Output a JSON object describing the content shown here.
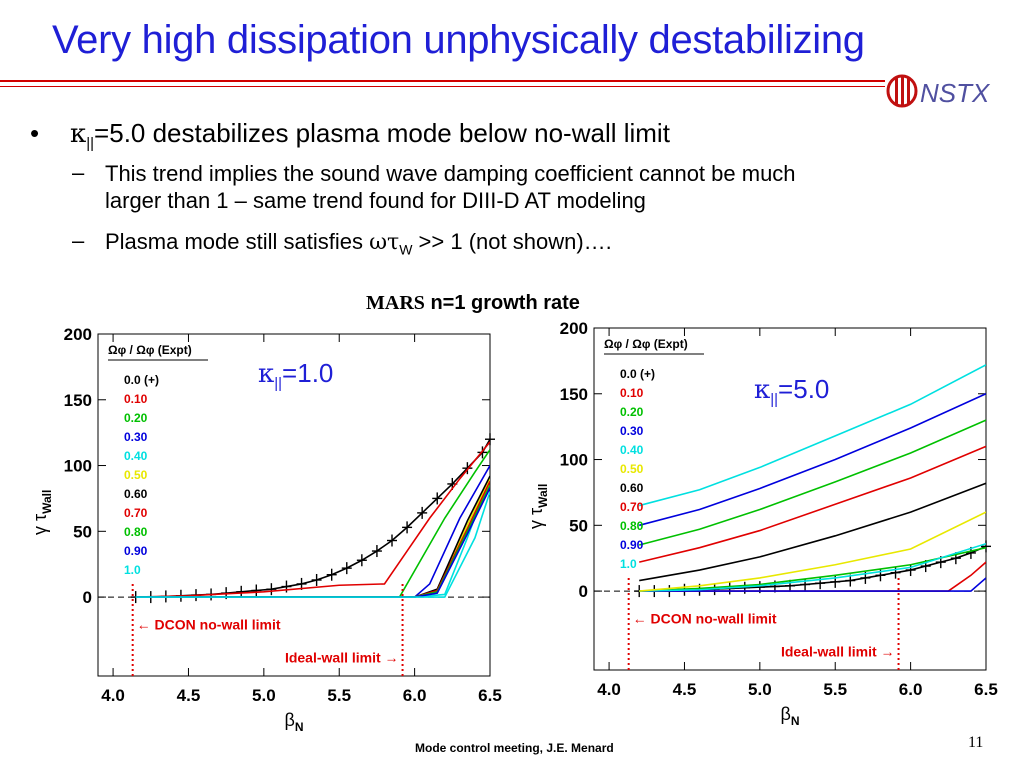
{
  "slide": {
    "title": "Very high dissipation unphysically destabilizing",
    "logo_text": "NSTX",
    "bullet": {
      "symbol": "κ",
      "subscript": "||",
      "text": "=5.0 destabilizes plasma mode below no-wall limit"
    },
    "sub_bullets": [
      {
        "line1": "This trend implies the sound wave damping coefficient cannot be much",
        "line2": "larger than 1 – same trend found for DIII-D AT modeling"
      },
      {
        "prefix": "Plasma mode still satisfies ",
        "symbol": "ωτ",
        "subscript": "W",
        "suffix": " >> 1 (not shown)…."
      }
    ],
    "figure_title_code": "MARS",
    "figure_title_rest": " n=1 growth rate",
    "footer": "Mode control meeting, J.E. Menard",
    "page_number": "11"
  },
  "chart_data": [
    {
      "type": "line",
      "panel_label": "κ||=1.0",
      "xlabel": "βN",
      "ylabel": "γ τWall",
      "xlim": [
        3.9,
        6.5
      ],
      "ylim": [
        -60,
        200
      ],
      "xticks": [
        "4.0",
        "4.5",
        "5.0",
        "5.5",
        "6.0",
        "6.5"
      ],
      "yticks": [
        "0",
        "50",
        "100",
        "150",
        "200"
      ],
      "legend_title": "Ωφ / Ωφ (Expt)",
      "legend_placement": "top-left",
      "annotations": [
        {
          "text": "← DCON no-wall limit",
          "x": 4.13,
          "color": "#e00000"
        },
        {
          "text": "Ideal-wall limit →",
          "x": 5.92,
          "color": "#e00000"
        }
      ],
      "series": [
        {
          "name": "0.0 (+)",
          "color": "#000000",
          "marker": "+",
          "x": [
            4.15,
            4.25,
            4.35,
            4.45,
            4.55,
            4.65,
            4.75,
            4.85,
            4.95,
            5.05,
            5.15,
            5.25,
            5.35,
            5.45,
            5.55,
            5.65,
            5.75,
            5.85,
            5.95,
            6.05,
            6.15,
            6.25,
            6.35,
            6.45,
            6.5
          ],
          "y": [
            0,
            0,
            0.5,
            1,
            1.5,
            2,
            3,
            4,
            5,
            6,
            8,
            10,
            13,
            17,
            22,
            28,
            35,
            43,
            53,
            64,
            75,
            86,
            98,
            110,
            120
          ]
        },
        {
          "name": "0.10",
          "color": "#e00000",
          "x": [
            4.15,
            4.5,
            5.0,
            5.5,
            5.8,
            5.95,
            6.1,
            6.3,
            6.5
          ],
          "y": [
            0,
            1,
            4,
            9,
            10,
            35,
            60,
            90,
            118
          ]
        },
        {
          "name": "0.20",
          "color": "#00c000",
          "x": [
            4.15,
            5.0,
            5.9,
            6.0,
            6.2,
            6.4,
            6.5
          ],
          "y": [
            0,
            0,
            0,
            20,
            60,
            95,
            112
          ]
        },
        {
          "name": "0.30",
          "color": "#0000dd",
          "x": [
            4.15,
            5.0,
            6.0,
            6.1,
            6.3,
            6.5
          ],
          "y": [
            0,
            0,
            0,
            10,
            60,
            100
          ]
        },
        {
          "name": "0.40",
          "color": "#00e0e0",
          "x": [
            4.15,
            5.0,
            6.0,
            6.2,
            6.35,
            6.5
          ],
          "y": [
            0,
            0,
            0,
            2,
            45,
            92
          ]
        },
        {
          "name": "0.50",
          "color": "#e8e800",
          "x": [
            4.15,
            5.0,
            6.0,
            6.15,
            6.35,
            6.5
          ],
          "y": [
            0,
            0,
            0,
            5,
            55,
            90
          ]
        },
        {
          "name": "0.60",
          "color": "#000000",
          "x": [
            4.15,
            5.0,
            6.0,
            6.15,
            6.35,
            6.5
          ],
          "y": [
            0,
            0,
            0,
            6,
            58,
            92
          ]
        },
        {
          "name": "0.70",
          "color": "#e00000",
          "x": [
            4.15,
            5.0,
            6.0,
            6.15,
            6.35,
            6.5
          ],
          "y": [
            0,
            0,
            0,
            5,
            52,
            88
          ]
        },
        {
          "name": "0.80",
          "color": "#00c000",
          "x": [
            4.15,
            5.0,
            6.0,
            6.15,
            6.35,
            6.5
          ],
          "y": [
            0,
            0,
            0,
            4,
            50,
            85
          ]
        },
        {
          "name": "0.90",
          "color": "#0000dd",
          "x": [
            4.15,
            5.0,
            6.0,
            6.15,
            6.35,
            6.5
          ],
          "y": [
            0,
            0,
            0,
            3,
            48,
            83
          ]
        },
        {
          "name": "1.0",
          "color": "#00e0e0",
          "x": [
            4.15,
            5.0,
            6.0,
            6.2,
            6.4,
            6.5
          ],
          "y": [
            0,
            0,
            0,
            0,
            45,
            80
          ]
        }
      ]
    },
    {
      "type": "line",
      "panel_label": "κ||=5.0",
      "xlabel": "βN",
      "ylabel": "γ τWall",
      "xlim": [
        3.9,
        6.5
      ],
      "ylim": [
        -60,
        200
      ],
      "xticks": [
        "4.0",
        "4.5",
        "5.0",
        "5.5",
        "6.0",
        "6.5"
      ],
      "yticks": [
        "0",
        "50",
        "100",
        "150",
        "200"
      ],
      "legend_title": "Ωφ / Ωφ (Expt)",
      "legend_placement": "top-left",
      "annotations": [
        {
          "text": "← DCON no-wall limit",
          "x": 4.13,
          "color": "#e00000"
        },
        {
          "text": "Ideal-wall limit →",
          "x": 5.92,
          "color": "#e00000"
        }
      ],
      "series": [
        {
          "name": "0.0 (+)",
          "color": "#000000",
          "marker": "+",
          "x": [
            4.2,
            4.3,
            4.4,
            4.5,
            4.6,
            4.7,
            4.8,
            4.9,
            5.0,
            5.1,
            5.2,
            5.3,
            5.4,
            5.5,
            5.6,
            5.7,
            5.8,
            5.9,
            6.0,
            6.1,
            6.2,
            6.3,
            6.4,
            6.5
          ],
          "y": [
            0,
            0,
            0,
            1,
            1,
            1.5,
            2,
            2.5,
            3,
            3.5,
            4,
            5,
            6,
            7,
            8,
            10,
            12,
            14,
            16,
            19,
            22,
            25,
            29,
            34
          ]
        },
        {
          "name": "0.10",
          "color": "#e00000",
          "x": [
            4.2,
            6.25,
            6.3,
            6.4,
            6.5
          ],
          "y": [
            0,
            0,
            4,
            12,
            22
          ]
        },
        {
          "name": "0.20",
          "color": "#00c000",
          "x": [
            4.2,
            4.6,
            5.0,
            5.5,
            6.0,
            6.5
          ],
          "y": [
            0,
            2,
            5,
            12,
            20,
            33
          ]
        },
        {
          "name": "0.30",
          "color": "#0000dd",
          "x": [
            4.2,
            6.4,
            6.5
          ],
          "y": [
            0,
            0,
            10
          ]
        },
        {
          "name": "0.40",
          "color": "#00e0e0",
          "x": [
            4.2,
            4.6,
            5.0,
            5.5,
            6.0,
            6.5
          ],
          "y": [
            0,
            1,
            4,
            10,
            18,
            36
          ]
        },
        {
          "name": "0.50",
          "color": "#e8e800",
          "x": [
            4.2,
            4.6,
            5.0,
            5.5,
            6.0,
            6.5
          ],
          "y": [
            0,
            4,
            10,
            20,
            32,
            60
          ]
        },
        {
          "name": "0.60",
          "color": "#000000",
          "x": [
            4.2,
            4.6,
            5.0,
            5.5,
            6.0,
            6.5
          ],
          "y": [
            8,
            16,
            26,
            42,
            60,
            82
          ]
        },
        {
          "name": "0.70",
          "color": "#e00000",
          "x": [
            4.2,
            4.6,
            5.0,
            5.5,
            6.0,
            6.5
          ],
          "y": [
            22,
            33,
            46,
            66,
            86,
            110
          ]
        },
        {
          "name": "0.80",
          "color": "#00c000",
          "x": [
            4.2,
            4.6,
            5.0,
            5.5,
            6.0,
            6.5
          ],
          "y": [
            35,
            47,
            62,
            83,
            105,
            130
          ]
        },
        {
          "name": "0.90",
          "color": "#0000dd",
          "x": [
            4.2,
            4.6,
            5.0,
            5.5,
            6.0,
            6.5
          ],
          "y": [
            50,
            62,
            78,
            100,
            124,
            150
          ]
        },
        {
          "name": "1.0",
          "color": "#00e0e0",
          "x": [
            4.2,
            4.6,
            5.0,
            5.5,
            6.0,
            6.5
          ],
          "y": [
            65,
            77,
            94,
            118,
            142,
            172
          ]
        }
      ]
    }
  ]
}
